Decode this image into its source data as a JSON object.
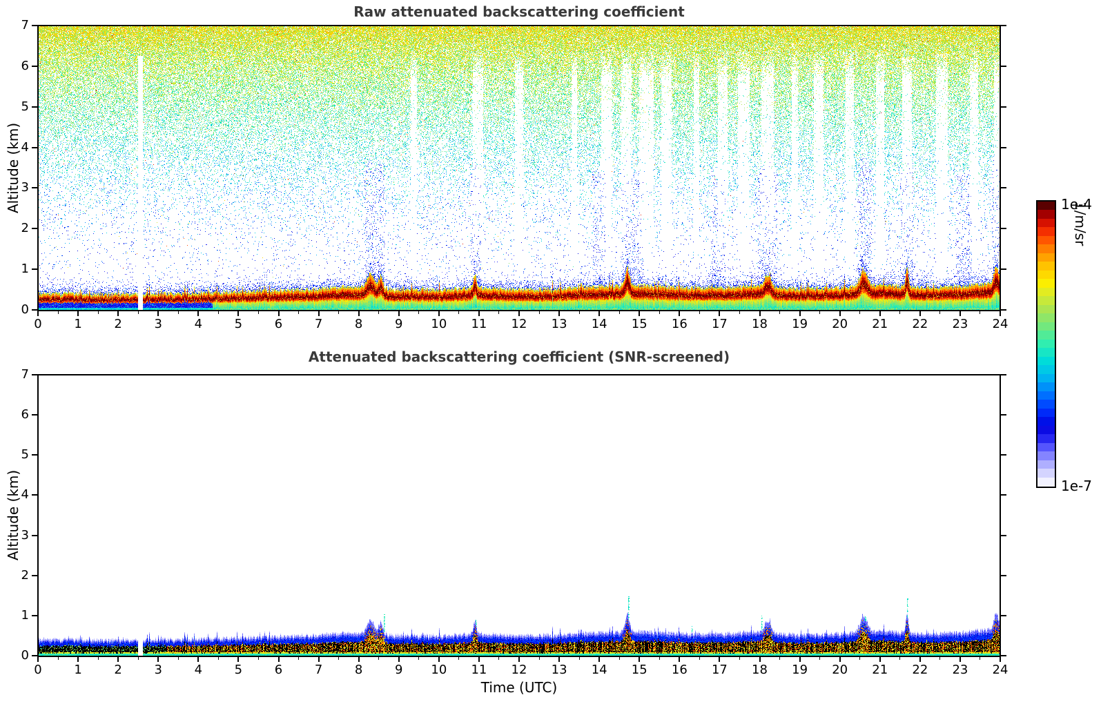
{
  "figure": {
    "background": "#ffffff",
    "title_color": "#3a3a3a",
    "axis_color": "#000000"
  },
  "chart_data": {
    "type": "heatmap",
    "description": "Lidar ceilometer attenuated backscatter time-height plots: raw (top, noisy) and SNR-screened (bottom, clean).",
    "panels": [
      {
        "title": "Raw attenuated backscattering coefficient",
        "ylabel": "Altitude (km)",
        "xlim": [
          0,
          24
        ],
        "ylim": [
          0,
          7
        ],
        "screened": false
      },
      {
        "title": "Attenuated backscattering coefficient (SNR-screened)",
        "ylabel": "Altitude (km)",
        "xlabel": "Time (UTC)",
        "xlim": [
          0,
          24
        ],
        "ylim": [
          0,
          7
        ],
        "screened": true
      }
    ],
    "axes": {
      "xtick_labels": [
        "0",
        "1",
        "2",
        "3",
        "4",
        "5",
        "6",
        "7",
        "8",
        "9",
        "10",
        "11",
        "12",
        "13",
        "14",
        "15",
        "16",
        "17",
        "18",
        "19",
        "20",
        "21",
        "22",
        "23",
        "24"
      ],
      "ytick_labels": [
        "0",
        "1",
        "2",
        "3",
        "4",
        "5",
        "6",
        "7"
      ],
      "minor_xtick_step": 0.5
    },
    "colorbar": {
      "top_label": "1e-4",
      "bottom_label": "1e-7",
      "label": "1/m/sr",
      "steps": 33,
      "stops": [
        [
          0,
          "#f2f2ff"
        ],
        [
          0.04,
          "#ccccff"
        ],
        [
          0.08,
          "#9999ff"
        ],
        [
          0.12,
          "#5c5cff"
        ],
        [
          0.16,
          "#2222f0"
        ],
        [
          0.2,
          "#0000dd"
        ],
        [
          0.26,
          "#0033ff"
        ],
        [
          0.32,
          "#0078ff"
        ],
        [
          0.38,
          "#00b8f0"
        ],
        [
          0.44,
          "#00ded8"
        ],
        [
          0.5,
          "#30eeb0"
        ],
        [
          0.56,
          "#70e880"
        ],
        [
          0.62,
          "#a8e455"
        ],
        [
          0.68,
          "#dcec28"
        ],
        [
          0.72,
          "#fcee00"
        ],
        [
          0.78,
          "#ffc400"
        ],
        [
          0.83,
          "#ff9000"
        ],
        [
          0.88,
          "#ff5000"
        ],
        [
          0.92,
          "#ee1e00"
        ],
        [
          0.96,
          "#b80000"
        ],
        [
          1,
          "#5a0000"
        ]
      ]
    },
    "boundary_layer": {
      "hours": [
        0,
        1,
        2,
        3,
        4,
        5,
        6,
        7,
        8,
        9,
        10,
        11,
        12,
        13,
        14,
        15,
        16,
        17,
        18,
        19,
        20,
        21,
        22,
        23,
        24
      ],
      "top_km": [
        0.4,
        0.4,
        0.38,
        0.4,
        0.42,
        0.45,
        0.48,
        0.52,
        0.58,
        0.5,
        0.5,
        0.55,
        0.5,
        0.52,
        0.58,
        0.6,
        0.55,
        0.55,
        0.6,
        0.52,
        0.55,
        0.62,
        0.55,
        0.58,
        0.68
      ],
      "spikes": [
        {
          "t": 8.3,
          "a": 0.35,
          "w": 0.12
        },
        {
          "t": 8.55,
          "a": 0.3,
          "w": 0.08
        },
        {
          "t": 10.9,
          "a": 0.3,
          "w": 0.06
        },
        {
          "t": 14.7,
          "a": 0.45,
          "w": 0.08
        },
        {
          "t": 18.2,
          "a": 0.3,
          "w": 0.1
        },
        {
          "t": 20.6,
          "a": 0.4,
          "w": 0.12
        },
        {
          "t": 21.68,
          "a": 0.45,
          "w": 0.05
        },
        {
          "t": 23.9,
          "a": 0.4,
          "w": 0.08
        }
      ],
      "overshoots": [
        {
          "t": 8.62,
          "h": 1.05
        },
        {
          "t": 10.92,
          "h": 0.9
        },
        {
          "t": 14.72,
          "h": 1.5
        },
        {
          "t": 16.3,
          "h": 0.75
        },
        {
          "t": 18.05,
          "h": 1.0
        },
        {
          "t": 20.62,
          "h": 1.0
        },
        {
          "t": 21.68,
          "h": 1.45
        },
        {
          "t": 23.92,
          "h": 0.95
        }
      ]
    },
    "data_gap": {
      "start": 2.5,
      "end": 2.62
    },
    "clean_stripes": [
      [
        9.3,
        9.45
      ],
      [
        10.85,
        11.1
      ],
      [
        11.9,
        12.1
      ],
      [
        13.3,
        13.45
      ],
      [
        14.05,
        14.3
      ],
      [
        14.55,
        14.8
      ],
      [
        15.0,
        15.35
      ],
      [
        15.55,
        15.8
      ],
      [
        16.35,
        16.5
      ],
      [
        16.95,
        17.2
      ],
      [
        17.45,
        17.75
      ],
      [
        18.05,
        18.35
      ],
      [
        18.8,
        18.95
      ],
      [
        19.35,
        19.6
      ],
      [
        20.15,
        20.35
      ],
      [
        20.9,
        21.1
      ],
      [
        21.55,
        21.8
      ],
      [
        22.4,
        22.7
      ],
      [
        23.25,
        23.45
      ],
      [
        23.85,
        24.0
      ]
    ],
    "blue_plumes": [
      [
        8.15,
        8.65
      ],
      [
        10.8,
        11.05
      ],
      [
        13.85,
        14.15
      ],
      [
        14.55,
        15.1
      ],
      [
        16.8,
        17.15
      ],
      [
        17.95,
        18.45
      ],
      [
        20.45,
        20.8
      ],
      [
        21.5,
        21.85
      ],
      [
        22.9,
        23.3
      ],
      [
        23.8,
        24.0
      ]
    ]
  }
}
